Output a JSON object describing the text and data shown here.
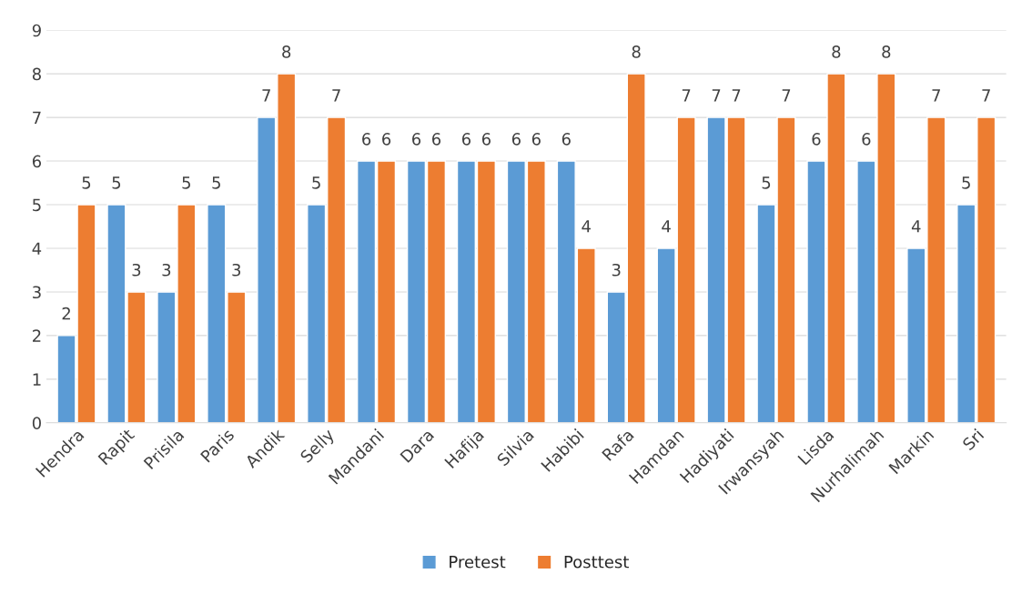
{
  "chart_data": {
    "type": "bar",
    "categories": [
      "Hendra",
      "Rapit",
      "Prisila",
      "Paris",
      "Andik",
      "Selly",
      "Mandani",
      "Dara",
      "Hafija",
      "Silvia",
      "Habibi",
      "Rafa",
      "Hamdan",
      "Hadiyati",
      "Irwansyah",
      "Lisda",
      "Nurhalimah",
      "Markin",
      "Sri"
    ],
    "series": [
      {
        "name": "Pretest",
        "color": "#5b9bd5",
        "values": [
          2,
          5,
          3,
          5,
          7,
          5,
          6,
          6,
          6,
          6,
          6,
          3,
          4,
          7,
          5,
          6,
          6,
          4,
          5
        ]
      },
      {
        "name": "Posttest",
        "color": "#ed7d31",
        "values": [
          5,
          3,
          5,
          3,
          8,
          7,
          6,
          6,
          6,
          6,
          4,
          8,
          7,
          7,
          7,
          8,
          8,
          7,
          7
        ]
      }
    ],
    "ylim": [
      0,
      9
    ],
    "yticks": [
      0,
      1,
      2,
      3,
      4,
      5,
      6,
      7,
      8,
      9
    ],
    "grid": "y",
    "legend": "bottom",
    "data_labels": true
  }
}
